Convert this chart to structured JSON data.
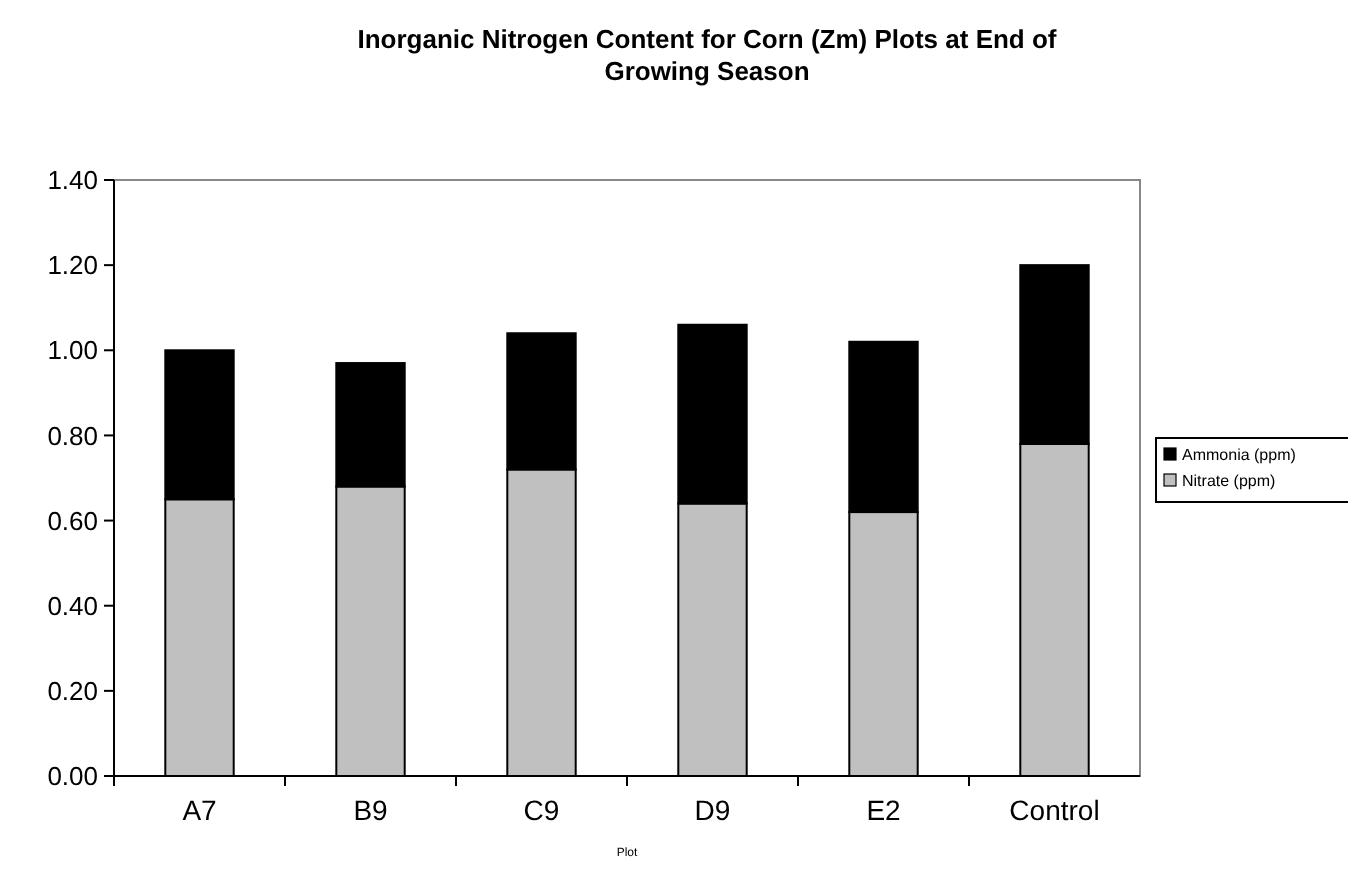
{
  "chart_data": {
    "type": "bar",
    "title": "Inorganic Nitrogen Content for Corn (Zm) Plots at End of Growing Season",
    "xlabel": "Plot",
    "categories": [
      "A7",
      "B9",
      "C9",
      "D9",
      "E2",
      "Control"
    ],
    "stacked": true,
    "series": [
      {
        "name": "Nitrate (ppm)",
        "color": "#c0c0c0",
        "values": [
          0.65,
          0.68,
          0.72,
          0.64,
          0.62,
          0.78
        ]
      },
      {
        "name": "Ammonia (ppm)",
        "color": "#000000",
        "values": [
          0.35,
          0.29,
          0.32,
          0.42,
          0.4,
          0.42
        ]
      }
    ],
    "ylim": [
      0,
      1.4
    ],
    "yticks": [
      {
        "value": 0,
        "label": "0.00"
      },
      {
        "value": 0.2,
        "label": "0.20"
      },
      {
        "value": 0.4,
        "label": "0.40"
      },
      {
        "value": 0.6,
        "label": "0.60"
      },
      {
        "value": 0.8,
        "label": "0.80"
      },
      {
        "value": 1,
        "label": "1.00"
      },
      {
        "value": 1.2,
        "label": "1.20"
      },
      {
        "value": 1.4,
        "label": "1.40"
      }
    ],
    "legend": "right"
  }
}
